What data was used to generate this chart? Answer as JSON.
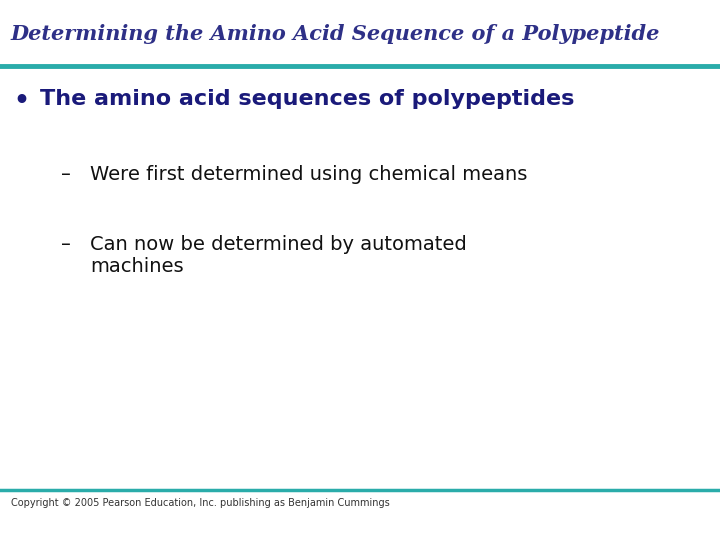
{
  "title": "Determining the Amino Acid Sequence of a Polypeptide",
  "title_color": "#2E3087",
  "title_fontsize": 15,
  "title_style": "italic",
  "title_font": "serif",
  "divider_color": "#2AACAA",
  "divider_linewidth": 3.5,
  "bullet_text": "The amino acid sequences of polypeptides",
  "bullet_color": "#1a1a7a",
  "bullet_fontsize": 16,
  "bullet_dot_color": "#1a1a7a",
  "sub_bullets": [
    "Were first determined using chemical means",
    "Can now be determined by automated\nmachines"
  ],
  "sub_bullet_color": "#111111",
  "sub_bullet_fontsize": 14,
  "background_color": "#ffffff",
  "footer_text": "Copyright © 2005 Pearson Education, Inc. publishing as Benjamin Cummings",
  "footer_color": "#333333",
  "footer_fontsize": 7,
  "footer_divider_color": "#2AACAA",
  "footer_divider_linewidth": 2.5
}
